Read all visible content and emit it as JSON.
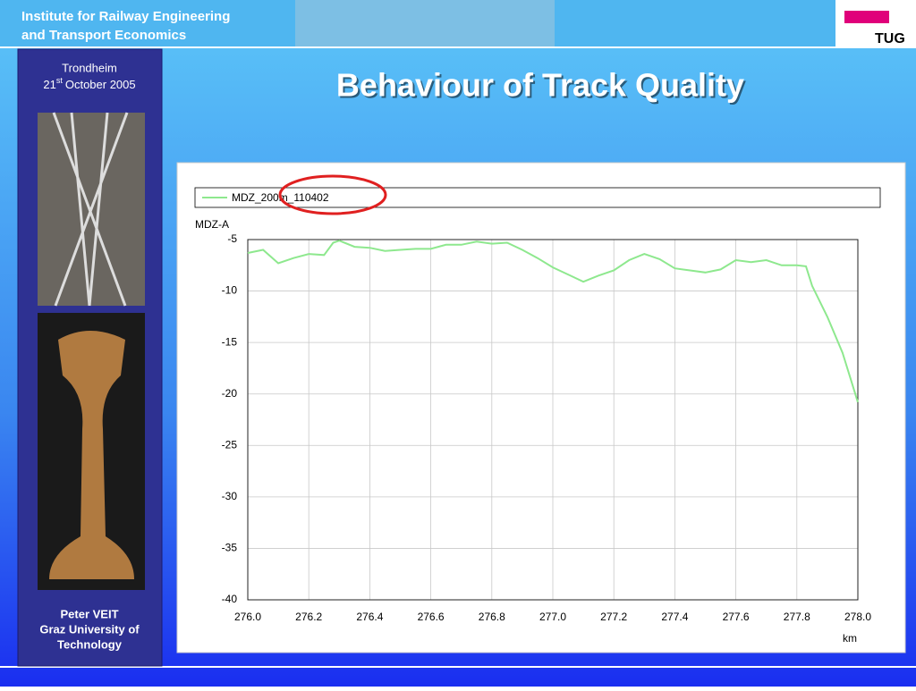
{
  "header": {
    "line1": "Institute for Railway Engineering",
    "line2": "and Transport Economics",
    "logo": "TUG"
  },
  "sidebar": {
    "place": "Trondheim",
    "date_day": "21",
    "date_suffix": "st",
    "date_rest": "October 2005",
    "author": "Peter VEIT",
    "affiliation1": "Graz University of",
    "affiliation2": "Technology"
  },
  "title": "Behaviour of Track Quality",
  "chart_data": {
    "type": "line",
    "y_label": "MDZ-A",
    "x_label": "km",
    "x": [
      276.0,
      276.05,
      276.1,
      276.15,
      276.2,
      276.25,
      276.28,
      276.3,
      276.35,
      276.4,
      276.45,
      276.5,
      276.55,
      276.6,
      276.65,
      276.7,
      276.75,
      276.8,
      276.85,
      276.9,
      276.95,
      277.0,
      277.05,
      277.1,
      277.15,
      277.2,
      277.25,
      277.3,
      277.35,
      277.4,
      277.45,
      277.5,
      277.55,
      277.6,
      277.65,
      277.7,
      277.75,
      277.8,
      277.83,
      277.85,
      277.9,
      277.95,
      278.0
    ],
    "series": [
      {
        "name": "MDZ_200m_110402",
        "color": "#8ee88e",
        "values": [
          -6.3,
          -6.0,
          -7.3,
          -6.8,
          -6.4,
          -6.5,
          -5.3,
          -5.1,
          -5.7,
          -5.8,
          -6.1,
          -6.0,
          -5.9,
          -5.9,
          -5.5,
          -5.5,
          -5.2,
          -5.4,
          -5.3,
          -6.0,
          -6.8,
          -7.7,
          -8.4,
          -9.1,
          -8.5,
          -8.0,
          -7.0,
          -6.4,
          -6.9,
          -7.8,
          -8.0,
          -8.2,
          -7.9,
          -7.0,
          -7.2,
          -7.0,
          -7.5,
          -7.5,
          -7.6,
          -9.5,
          -12.5,
          -16.0,
          -20.8
        ]
      }
    ],
    "xlim": [
      276.0,
      278.0
    ],
    "xticks": [
      {
        "value": 276.0,
        "label": "276.0"
      },
      {
        "value": 276.2,
        "label": "276.2"
      },
      {
        "value": 276.4,
        "label": "276.4"
      },
      {
        "value": 276.6,
        "label": "276.6"
      },
      {
        "value": 276.8,
        "label": "276.8"
      },
      {
        "value": 277.0,
        "label": "277.0"
      },
      {
        "value": 277.2,
        "label": "277.2"
      },
      {
        "value": 277.4,
        "label": "277.4"
      },
      {
        "value": 277.6,
        "label": "277.6"
      },
      {
        "value": 277.8,
        "label": "277.8"
      },
      {
        "value": 278.0,
        "label": "278.0"
      }
    ],
    "ylim": [
      -40,
      -5
    ],
    "yticks": [
      -5,
      -10,
      -15,
      -20,
      -25,
      -30,
      -35,
      -40
    ],
    "grid": true
  }
}
